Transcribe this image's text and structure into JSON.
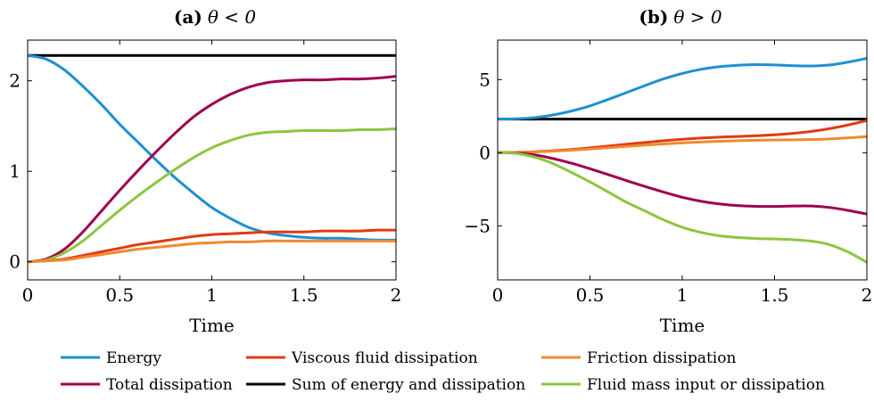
{
  "legend": [
    {
      "label": "Energy",
      "color": "#1f8fd0"
    },
    {
      "label": "Viscous fluid dissipation",
      "color": "#e23a12"
    },
    {
      "label": "Friction dissipation",
      "color": "#f08a30"
    },
    {
      "label": "Total dissipation",
      "color": "#a0004f"
    },
    {
      "label": "Sum of energy and dissipation",
      "color": "#000000"
    },
    {
      "label": "Fluid mass input or dissipation",
      "color": "#8cc63f"
    }
  ],
  "chart_data": [
    {
      "type": "line",
      "title_label": "(a)",
      "title_cond": "θ < 0",
      "xlabel": "Time",
      "ylabel": "",
      "xlim": [
        0,
        2
      ],
      "ylim": [
        -0.2,
        2.45
      ],
      "xticks": [
        0,
        0.5,
        1,
        1.5,
        2
      ],
      "xtick_labels": [
        "0",
        "0.5",
        "1",
        "1.5",
        "2"
      ],
      "yticks": [
        0,
        1,
        2
      ],
      "ytick_labels": [
        "0",
        "1",
        "2"
      ],
      "grid": false,
      "series": [
        {
          "name": "Sum of energy and dissipation",
          "color": "#000000",
          "x": [
            0,
            2
          ],
          "y": [
            2.28,
            2.28
          ]
        },
        {
          "name": "Energy",
          "color": "#1f8fd0",
          "x": [
            0,
            0.1,
            0.2,
            0.3,
            0.4,
            0.5,
            0.6,
            0.7,
            0.8,
            0.9,
            1.0,
            1.1,
            1.2,
            1.3,
            1.4,
            1.5,
            1.6,
            1.7,
            1.8,
            1.9,
            2.0
          ],
          "y": [
            2.28,
            2.24,
            2.12,
            1.94,
            1.74,
            1.52,
            1.32,
            1.12,
            0.93,
            0.76,
            0.6,
            0.48,
            0.38,
            0.32,
            0.29,
            0.27,
            0.26,
            0.26,
            0.25,
            0.24,
            0.24
          ]
        },
        {
          "name": "Total dissipation",
          "color": "#a0004f",
          "x": [
            0,
            0.1,
            0.2,
            0.3,
            0.4,
            0.5,
            0.6,
            0.7,
            0.8,
            0.9,
            1.0,
            1.1,
            1.2,
            1.3,
            1.4,
            1.5,
            1.6,
            1.7,
            1.8,
            1.9,
            2.0
          ],
          "y": [
            0,
            0.03,
            0.14,
            0.33,
            0.56,
            0.79,
            1.01,
            1.22,
            1.42,
            1.6,
            1.74,
            1.85,
            1.93,
            1.98,
            2.0,
            2.01,
            2.01,
            2.02,
            2.02,
            2.03,
            2.05
          ]
        },
        {
          "name": "Fluid mass input or dissipation",
          "color": "#8cc63f",
          "x": [
            0,
            0.1,
            0.2,
            0.3,
            0.4,
            0.5,
            0.6,
            0.7,
            0.8,
            0.9,
            1.0,
            1.1,
            1.2,
            1.3,
            1.4,
            1.5,
            1.6,
            1.7,
            1.8,
            1.9,
            2.0
          ],
          "y": [
            0,
            0.02,
            0.1,
            0.23,
            0.4,
            0.57,
            0.73,
            0.88,
            1.02,
            1.15,
            1.26,
            1.34,
            1.4,
            1.43,
            1.44,
            1.45,
            1.45,
            1.45,
            1.46,
            1.46,
            1.47
          ]
        },
        {
          "name": "Viscous fluid dissipation",
          "color": "#e23a12",
          "x": [
            0,
            0.1,
            0.2,
            0.3,
            0.4,
            0.5,
            0.6,
            0.7,
            0.8,
            0.9,
            1.0,
            1.1,
            1.2,
            1.3,
            1.4,
            1.5,
            1.6,
            1.7,
            1.8,
            1.9,
            2.0
          ],
          "y": [
            0,
            0.01,
            0.03,
            0.07,
            0.11,
            0.15,
            0.19,
            0.22,
            0.25,
            0.28,
            0.3,
            0.31,
            0.32,
            0.33,
            0.33,
            0.33,
            0.34,
            0.34,
            0.34,
            0.35,
            0.35
          ]
        },
        {
          "name": "Friction dissipation",
          "color": "#f08a30",
          "x": [
            0,
            0.1,
            0.2,
            0.3,
            0.4,
            0.5,
            0.6,
            0.7,
            0.8,
            0.9,
            1.0,
            1.1,
            1.2,
            1.3,
            1.4,
            1.5,
            1.6,
            1.7,
            1.8,
            1.9,
            2.0
          ],
          "y": [
            0,
            0.01,
            0.02,
            0.05,
            0.08,
            0.11,
            0.14,
            0.16,
            0.18,
            0.2,
            0.21,
            0.22,
            0.22,
            0.23,
            0.23,
            0.23,
            0.23,
            0.23,
            0.23,
            0.23,
            0.23
          ]
        }
      ]
    },
    {
      "type": "line",
      "title_label": "(b)",
      "title_cond": "θ > 0",
      "xlabel": "Time",
      "ylabel": "",
      "xlim": [
        0,
        2
      ],
      "ylim": [
        -8.7,
        7.7
      ],
      "xticks": [
        0,
        0.5,
        1,
        1.5,
        2
      ],
      "xtick_labels": [
        "0",
        "0.5",
        "1",
        "1.5",
        "2"
      ],
      "yticks": [
        -5,
        0,
        5
      ],
      "ytick_labels": [
        "−5",
        "0",
        "5"
      ],
      "grid": false,
      "series": [
        {
          "name": "Sum of energy and dissipation",
          "color": "#000000",
          "x": [
            0,
            2
          ],
          "y": [
            2.3,
            2.3
          ]
        },
        {
          "name": "Energy",
          "color": "#1f8fd0",
          "x": [
            0,
            0.1,
            0.2,
            0.3,
            0.4,
            0.5,
            0.6,
            0.7,
            0.8,
            0.9,
            1.0,
            1.1,
            1.2,
            1.3,
            1.4,
            1.5,
            1.6,
            1.7,
            1.8,
            1.9,
            2.0
          ],
          "y": [
            2.3,
            2.32,
            2.4,
            2.58,
            2.85,
            3.2,
            3.65,
            4.12,
            4.6,
            5.05,
            5.42,
            5.7,
            5.88,
            5.98,
            6.02,
            6.0,
            5.95,
            5.93,
            6.0,
            6.2,
            6.45
          ]
        },
        {
          "name": "Viscous fluid dissipation",
          "color": "#e23a12",
          "x": [
            0,
            0.1,
            0.2,
            0.3,
            0.4,
            0.5,
            0.6,
            0.7,
            0.8,
            0.9,
            1.0,
            1.1,
            1.2,
            1.3,
            1.4,
            1.5,
            1.6,
            1.7,
            1.8,
            1.9,
            2.0
          ],
          "y": [
            0,
            0.02,
            0.06,
            0.13,
            0.22,
            0.33,
            0.45,
            0.58,
            0.7,
            0.82,
            0.92,
            1.0,
            1.06,
            1.11,
            1.16,
            1.22,
            1.32,
            1.46,
            1.65,
            1.9,
            2.2
          ]
        },
        {
          "name": "Friction dissipation",
          "color": "#f08a30",
          "x": [
            0,
            0.1,
            0.2,
            0.3,
            0.4,
            0.5,
            0.6,
            0.7,
            0.8,
            0.9,
            1.0,
            1.1,
            1.2,
            1.3,
            1.4,
            1.5,
            1.6,
            1.7,
            1.8,
            1.9,
            2.0
          ],
          "y": [
            0,
            0.02,
            0.05,
            0.1,
            0.17,
            0.25,
            0.34,
            0.43,
            0.52,
            0.6,
            0.67,
            0.73,
            0.78,
            0.82,
            0.85,
            0.87,
            0.88,
            0.9,
            0.94,
            1.02,
            1.1
          ]
        },
        {
          "name": "Total dissipation",
          "color": "#a0004f",
          "x": [
            0,
            0.1,
            0.2,
            0.3,
            0.4,
            0.5,
            0.6,
            0.7,
            0.8,
            0.9,
            1.0,
            1.1,
            1.2,
            1.3,
            1.4,
            1.5,
            1.6,
            1.7,
            1.8,
            1.9,
            2.0
          ],
          "y": [
            0,
            -0.03,
            -0.15,
            -0.4,
            -0.72,
            -1.1,
            -1.5,
            -1.92,
            -2.32,
            -2.7,
            -3.05,
            -3.32,
            -3.5,
            -3.62,
            -3.67,
            -3.68,
            -3.65,
            -3.65,
            -3.75,
            -3.95,
            -4.2
          ]
        },
        {
          "name": "Fluid mass input or dissipation",
          "color": "#8cc63f",
          "x": [
            0,
            0.1,
            0.2,
            0.3,
            0.4,
            0.5,
            0.6,
            0.7,
            0.8,
            0.9,
            1.0,
            1.1,
            1.2,
            1.3,
            1.4,
            1.5,
            1.6,
            1.7,
            1.8,
            1.9,
            2.0
          ],
          "y": [
            0,
            -0.05,
            -0.3,
            -0.75,
            -1.35,
            -2.0,
            -2.7,
            -3.4,
            -4.0,
            -4.6,
            -5.1,
            -5.45,
            -5.68,
            -5.8,
            -5.87,
            -5.9,
            -5.95,
            -6.05,
            -6.3,
            -6.8,
            -7.5
          ]
        }
      ]
    }
  ]
}
